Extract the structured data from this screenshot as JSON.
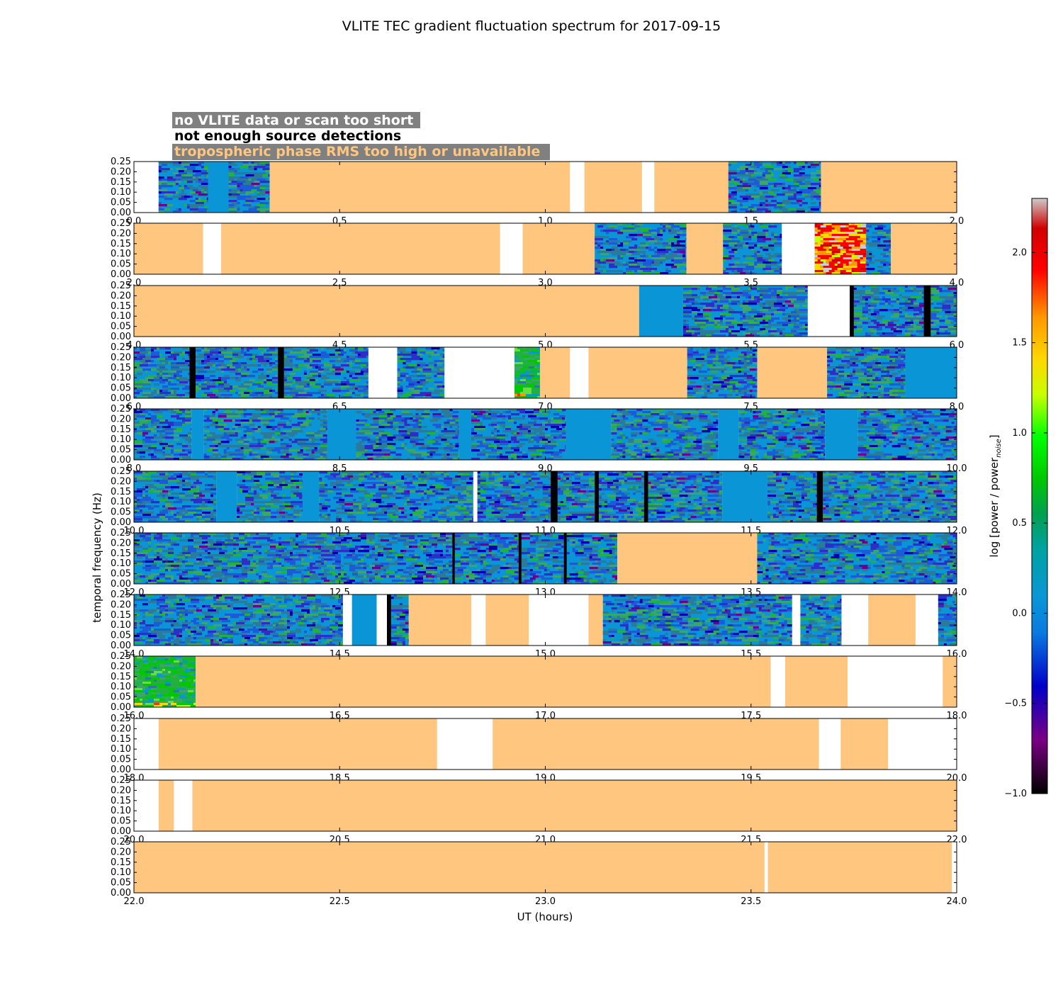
{
  "chart_data": {
    "type": "heatmap",
    "title": "VLITE TEC gradient fluctuation spectrum for 2017-09-15",
    "xlabel": "UT (hours)",
    "ylabel": "temporal frequency (Hz)",
    "colorbar": {
      "label_main": "log [power / power",
      "label_sub": "noise",
      "label_end": "]",
      "range": [
        -1.0,
        2.3
      ],
      "ticks": [
        "−1.0",
        "−0.5",
        "0.0",
        "0.5",
        "1.0",
        "1.5",
        "2.0"
      ],
      "tick_values": [
        -1.0,
        -0.5,
        0.0,
        0.5,
        1.0,
        1.5,
        2.0
      ]
    },
    "legend": [
      {
        "label": "no VLITE data or scan too short",
        "color": "#ffffff"
      },
      {
        "label": "not enough source detections",
        "color": "#000000"
      },
      {
        "label": "tropospheric phase RMS too high or unavailable",
        "color": "#ffc680"
      }
    ],
    "colors": {
      "troposphere": "#ffc680",
      "nodata": "#ffffff",
      "nodet": "#000000",
      "background": "#0a96d6",
      "legend_box": "#808080"
    },
    "y_ticks": [
      "0.00",
      "0.05",
      "0.10",
      "0.15",
      "0.20",
      "0.25"
    ],
    "ylim": [
      0,
      0.25
    ],
    "panels": [
      {
        "xlim": [
          0,
          2
        ],
        "xticks": [
          "0.0",
          "0.5",
          "1.0",
          "1.5",
          "2.0"
        ],
        "segments": [
          [
            0.0,
            0.06,
            "W"
          ],
          [
            0.06,
            0.18,
            "D"
          ],
          [
            0.18,
            0.23,
            "B"
          ],
          [
            0.23,
            0.33,
            "D"
          ],
          [
            0.33,
            1.06,
            "T"
          ],
          [
            1.06,
            1.095,
            "W"
          ],
          [
            1.095,
            1.235,
            "T"
          ],
          [
            1.235,
            1.265,
            "W"
          ],
          [
            1.265,
            1.445,
            "T"
          ],
          [
            1.445,
            1.67,
            "D"
          ],
          [
            1.67,
            2.0,
            "T"
          ]
        ]
      },
      {
        "xlim": [
          2,
          4
        ],
        "xticks": [
          "2.0",
          "2.5",
          "3.0",
          "3.5",
          "4.0"
        ],
        "segments": [
          [
            2.0,
            2.168,
            "T"
          ],
          [
            2.168,
            2.212,
            "W"
          ],
          [
            2.212,
            2.89,
            "T"
          ],
          [
            2.89,
            2.945,
            "W"
          ],
          [
            2.945,
            3.12,
            "T"
          ],
          [
            3.12,
            3.343,
            "D"
          ],
          [
            3.343,
            3.432,
            "T"
          ],
          [
            3.432,
            3.575,
            "D"
          ],
          [
            3.575,
            3.655,
            "W"
          ],
          [
            3.655,
            3.78,
            "H"
          ],
          [
            3.78,
            3.84,
            "D"
          ],
          [
            3.84,
            4.0,
            "T"
          ]
        ]
      },
      {
        "xlim": [
          4,
          6
        ],
        "xticks": [
          "4.0",
          "4.5",
          "5.0",
          "5.5",
          "6.0"
        ],
        "segments": [
          [
            4.0,
            5.228,
            "T"
          ],
          [
            5.228,
            5.335,
            "B"
          ],
          [
            5.335,
            5.638,
            "D"
          ],
          [
            5.638,
            5.74,
            "W"
          ],
          [
            5.74,
            5.75,
            "K"
          ],
          [
            5.75,
            5.92,
            "D"
          ],
          [
            5.92,
            5.937,
            "K"
          ],
          [
            5.937,
            6.0,
            "D"
          ]
        ]
      },
      {
        "xlim": [
          6,
          8
        ],
        "xticks": [
          "6.0",
          "6.5",
          "7.0",
          "7.5",
          "8.0"
        ],
        "segments": [
          [
            6.0,
            6.135,
            "D"
          ],
          [
            6.135,
            6.15,
            "K"
          ],
          [
            6.15,
            6.35,
            "D"
          ],
          [
            6.35,
            6.365,
            "K"
          ],
          [
            6.365,
            6.57,
            "D"
          ],
          [
            6.57,
            6.64,
            "W"
          ],
          [
            6.64,
            6.755,
            "D"
          ],
          [
            6.755,
            6.925,
            "W"
          ],
          [
            6.925,
            6.987,
            "G"
          ],
          [
            6.987,
            7.06,
            "T"
          ],
          [
            7.06,
            7.105,
            "W"
          ],
          [
            7.105,
            7.345,
            "T"
          ],
          [
            7.345,
            7.515,
            "D"
          ],
          [
            7.515,
            7.685,
            "T"
          ],
          [
            7.685,
            7.875,
            "D"
          ],
          [
            7.875,
            8.0,
            "B"
          ]
        ]
      },
      {
        "xlim": [
          8,
          10
        ],
        "xticks": [
          "8.0",
          "8.5",
          "9.0",
          "9.5",
          "10.0"
        ],
        "segments": [
          [
            8.0,
            8.14,
            "D"
          ],
          [
            8.14,
            8.17,
            "B"
          ],
          [
            8.17,
            8.47,
            "D"
          ],
          [
            8.47,
            8.54,
            "B"
          ],
          [
            8.54,
            8.79,
            "D"
          ],
          [
            8.79,
            8.82,
            "B"
          ],
          [
            8.82,
            9.05,
            "D"
          ],
          [
            9.05,
            9.16,
            "B"
          ],
          [
            9.16,
            9.42,
            "D"
          ],
          [
            9.42,
            9.47,
            "B"
          ],
          [
            9.47,
            9.68,
            "D"
          ],
          [
            9.68,
            9.76,
            "B"
          ],
          [
            9.76,
            10.0,
            "D"
          ]
        ]
      },
      {
        "xlim": [
          10,
          12
        ],
        "xticks": [
          "10.0",
          "10.5",
          "11.0",
          "11.5",
          "12.0"
        ],
        "segments": [
          [
            10.0,
            10.2,
            "D"
          ],
          [
            10.2,
            10.25,
            "B"
          ],
          [
            10.25,
            10.41,
            "D"
          ],
          [
            10.41,
            10.45,
            "B"
          ],
          [
            10.45,
            10.825,
            "D"
          ],
          [
            10.825,
            10.835,
            "W"
          ],
          [
            10.835,
            11.013,
            "D"
          ],
          [
            11.013,
            11.03,
            "K"
          ],
          [
            11.03,
            11.12,
            "D"
          ],
          [
            11.12,
            11.13,
            "K"
          ],
          [
            11.13,
            11.24,
            "D"
          ],
          [
            11.24,
            11.25,
            "K"
          ],
          [
            11.25,
            11.43,
            "D"
          ],
          [
            11.43,
            11.54,
            "B"
          ],
          [
            11.54,
            11.66,
            "D"
          ],
          [
            11.66,
            11.675,
            "K"
          ],
          [
            11.675,
            12.0,
            "D"
          ]
        ]
      },
      {
        "xlim": [
          12,
          14
        ],
        "xticks": [
          "12.0",
          "12.5",
          "13.0",
          "13.5",
          "14.0"
        ],
        "segments": [
          [
            12.0,
            12.774,
            "D"
          ],
          [
            12.774,
            12.78,
            "K"
          ],
          [
            12.78,
            12.935,
            "D"
          ],
          [
            12.935,
            12.942,
            "K"
          ],
          [
            12.942,
            13.045,
            "D"
          ],
          [
            13.045,
            13.052,
            "K"
          ],
          [
            13.052,
            13.175,
            "D"
          ],
          [
            13.175,
            13.515,
            "T"
          ],
          [
            13.515,
            14.0,
            "D"
          ]
        ]
      },
      {
        "xlim": [
          14,
          16
        ],
        "xticks": [
          "14.0",
          "14.5",
          "15.0",
          "15.5",
          "16.0"
        ],
        "segments": [
          [
            14.0,
            14.508,
            "D"
          ],
          [
            14.508,
            14.53,
            "W"
          ],
          [
            14.53,
            14.59,
            "B"
          ],
          [
            14.59,
            14.615,
            "W"
          ],
          [
            14.615,
            14.625,
            "K"
          ],
          [
            14.625,
            14.668,
            "D"
          ],
          [
            14.668,
            14.82,
            "T"
          ],
          [
            14.82,
            14.855,
            "W"
          ],
          [
            14.855,
            14.96,
            "T"
          ],
          [
            14.96,
            15.105,
            "W"
          ],
          [
            15.105,
            15.14,
            "T"
          ],
          [
            15.14,
            15.6,
            "D"
          ],
          [
            15.6,
            15.62,
            "W"
          ],
          [
            15.62,
            15.72,
            "D"
          ],
          [
            15.72,
            15.785,
            "W"
          ],
          [
            15.785,
            15.9,
            "T"
          ],
          [
            15.9,
            15.955,
            "W"
          ],
          [
            15.955,
            16.0,
            "D"
          ]
        ]
      },
      {
        "xlim": [
          16,
          18
        ],
        "xticks": [
          "16.0",
          "16.5",
          "17.0",
          "17.5",
          "18.0"
        ],
        "segments": [
          [
            16.0,
            16.15,
            "G"
          ],
          [
            16.15,
            17.548,
            "T"
          ],
          [
            17.548,
            17.583,
            "W"
          ],
          [
            17.583,
            17.735,
            "T"
          ],
          [
            17.735,
            17.966,
            "W"
          ],
          [
            17.966,
            18.0,
            "T"
          ]
        ]
      },
      {
        "xlim": [
          18,
          20
        ],
        "xticks": [
          "18.0",
          "18.5",
          "19.0",
          "19.5",
          "20.0"
        ],
        "segments": [
          [
            18.0,
            18.06,
            "W"
          ],
          [
            18.06,
            18.737,
            "T"
          ],
          [
            18.737,
            18.872,
            "W"
          ],
          [
            18.872,
            19.665,
            "T"
          ],
          [
            19.665,
            19.718,
            "W"
          ],
          [
            19.718,
            19.833,
            "T"
          ],
          [
            19.833,
            20.0,
            "W"
          ]
        ]
      },
      {
        "xlim": [
          20,
          22
        ],
        "xticks": [
          "20.0",
          "20.5",
          "21.0",
          "21.5",
          "22.0"
        ],
        "segments": [
          [
            20.0,
            20.06,
            "W"
          ],
          [
            20.06,
            20.097,
            "T"
          ],
          [
            20.097,
            20.142,
            "W"
          ],
          [
            20.142,
            22.0,
            "T"
          ]
        ]
      },
      {
        "xlim": [
          22,
          24
        ],
        "xticks": [
          "22.0",
          "22.5",
          "23.0",
          "23.5",
          "24.0"
        ],
        "segments": [
          [
            22.0,
            23.533,
            "T"
          ],
          [
            23.533,
            23.541,
            "W"
          ],
          [
            23.541,
            23.988,
            "T"
          ],
          [
            23.988,
            24.0,
            "W"
          ]
        ]
      }
    ]
  }
}
